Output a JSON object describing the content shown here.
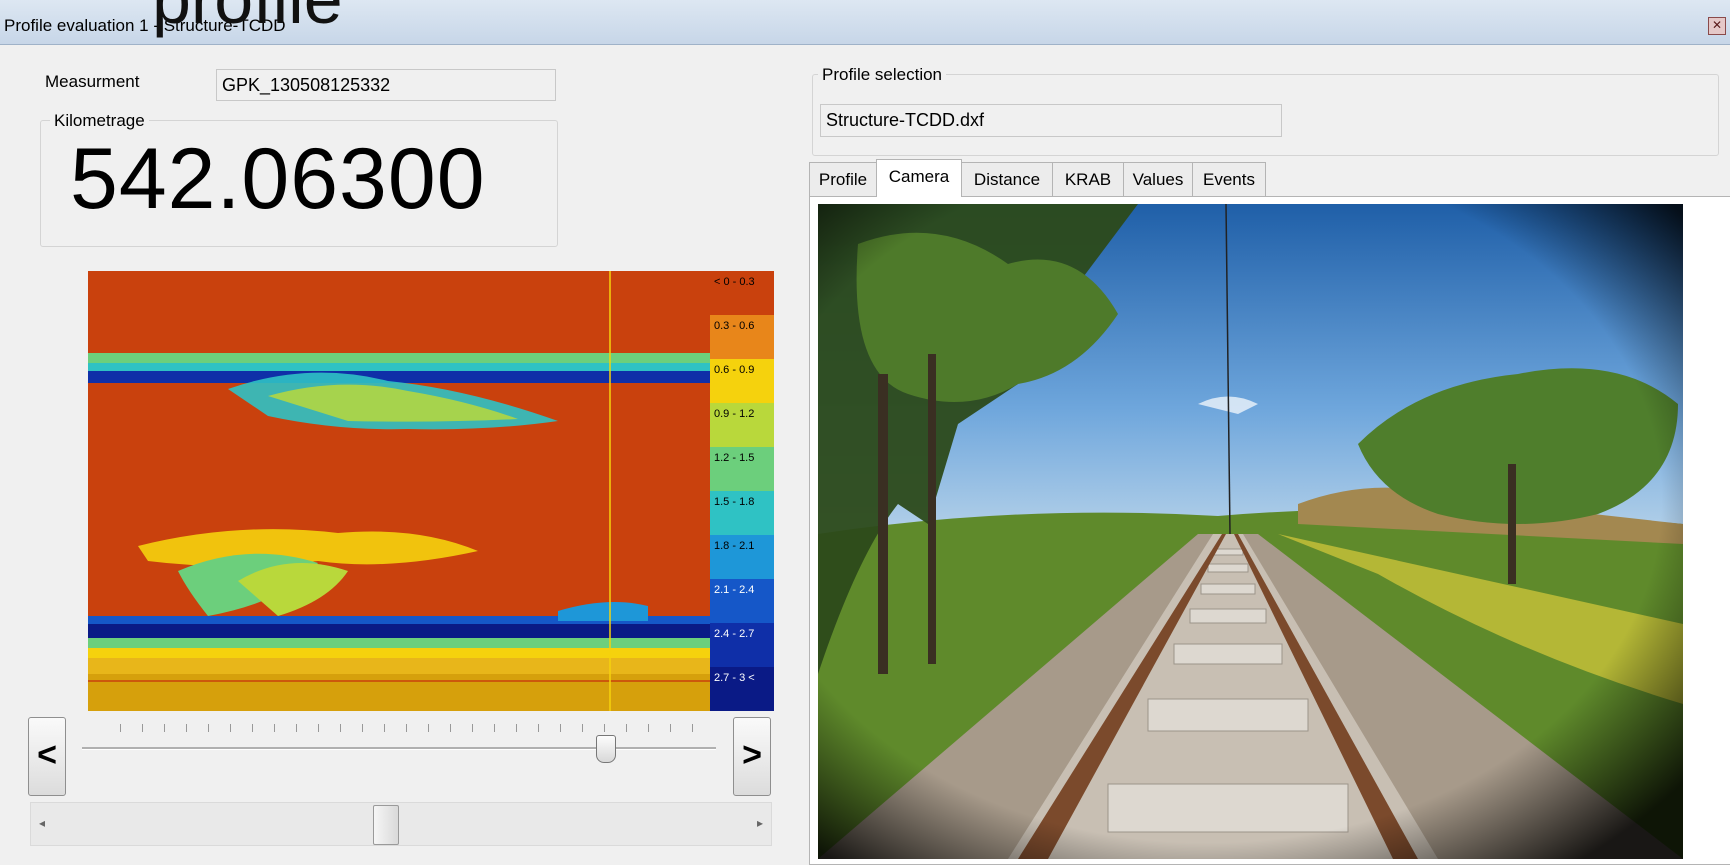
{
  "window": {
    "title": "Profile evaluation 1 - Structure-TCDD",
    "overlay_caption": "profile",
    "close_icon": "close-icon"
  },
  "left": {
    "measurement_label": "Measurment",
    "measurement_value": "GPK_130508125332",
    "kilometrage_label": "Kilometrage",
    "kilometrage_value": "542.06300",
    "prev_label": "<",
    "next_label": ">",
    "slider_level": 0.83,
    "scroll_position": 0.48,
    "legend": [
      {
        "label": "< 0 - 0.3",
        "color": "#c9410d"
      },
      {
        "label": "0.3 - 0.6",
        "color": "#e8861a"
      },
      {
        "label": "0.6 - 0.9",
        "color": "#f5d20d"
      },
      {
        "label": "0.9 - 1.2",
        "color": "#b9d83b"
      },
      {
        "label": "1.2 - 1.5",
        "color": "#6ccf7c"
      },
      {
        "label": "1.5 - 1.8",
        "color": "#2fc2c4"
      },
      {
        "label": "1.8 - 2.1",
        "color": "#1e97d8"
      },
      {
        "label": "2.1 - 2.4",
        "color": "#1557c8"
      },
      {
        "label": "2.4 - 2.7",
        "color": "#0f2fa8"
      },
      {
        "label": "2.7 - 3 <",
        "color": "#0a1a86"
      }
    ]
  },
  "right": {
    "profile_selection_label": "Profile selection",
    "profile_selection_value": "Structure-TCDD.dxf",
    "tabs": [
      "Profile",
      "Camera",
      "Distance",
      "KRAB",
      "Values",
      "Events"
    ],
    "active_tab": "Camera"
  }
}
